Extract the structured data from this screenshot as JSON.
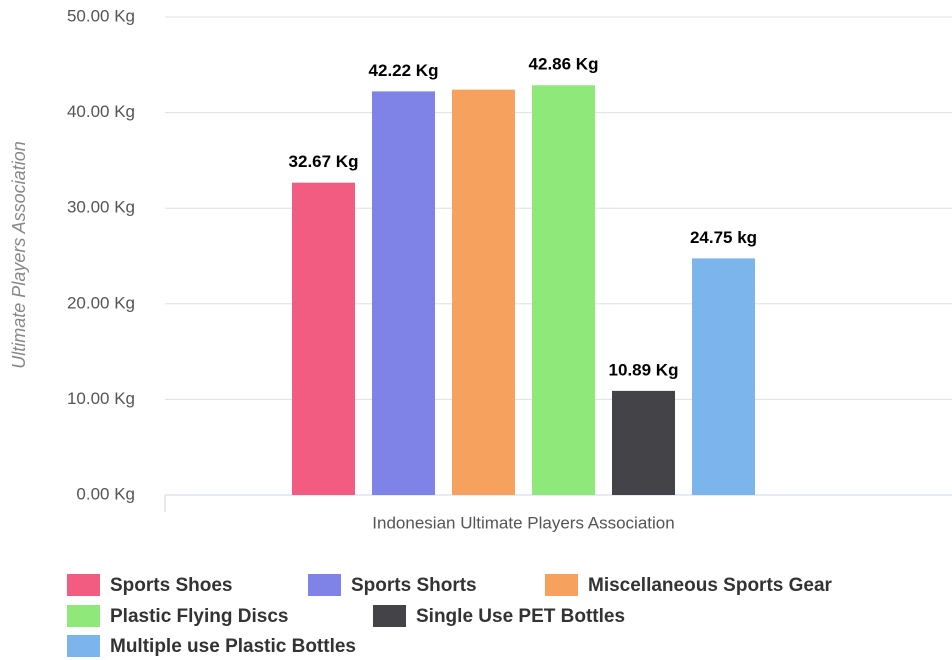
{
  "chart_data": {
    "type": "bar",
    "y_axis_label": "Ultimate Players Association",
    "categories": [
      "Indonesian Ultimate Players Association"
    ],
    "series": [
      {
        "name": "Sports Shoes",
        "color": "#f25c80",
        "values": [
          32.67
        ],
        "value_labels": [
          "32.67 Kg"
        ]
      },
      {
        "name": "Sports Shorts",
        "color": "#7f83e8",
        "values": [
          42.22
        ],
        "value_labels": [
          "42.22 Kg"
        ]
      },
      {
        "name": "Miscellaneous Sports Gear",
        "color": "#f6a25e",
        "values": [
          42.4
        ]
      },
      {
        "name": "Plastic Flying Discs",
        "color": "#8fe97a",
        "values": [
          42.86
        ],
        "value_labels": [
          "42.86 Kg"
        ]
      },
      {
        "name": "Single Use PET Bottles",
        "color": "#434348",
        "values": [
          10.89
        ],
        "value_labels": [
          "10.89 Kg"
        ]
      },
      {
        "name": "Multiple use Plastic Bottles",
        "color": "#7cb5ec",
        "values": [
          24.75
        ],
        "value_labels": [
          "24.75 kg"
        ]
      }
    ],
    "ylim": [
      0,
      50
    ],
    "yticks": [
      {
        "value": 0,
        "label": "0.00 Kg"
      },
      {
        "value": 10,
        "label": "10.00 Kg"
      },
      {
        "value": 20,
        "label": "20.00 Kg"
      },
      {
        "value": 30,
        "label": "30.00 Kg"
      },
      {
        "value": 40,
        "label": "40.00 Kg"
      },
      {
        "value": 50,
        "label": "50.00 Kg"
      }
    ],
    "grid": true,
    "legend": "bottom"
  }
}
